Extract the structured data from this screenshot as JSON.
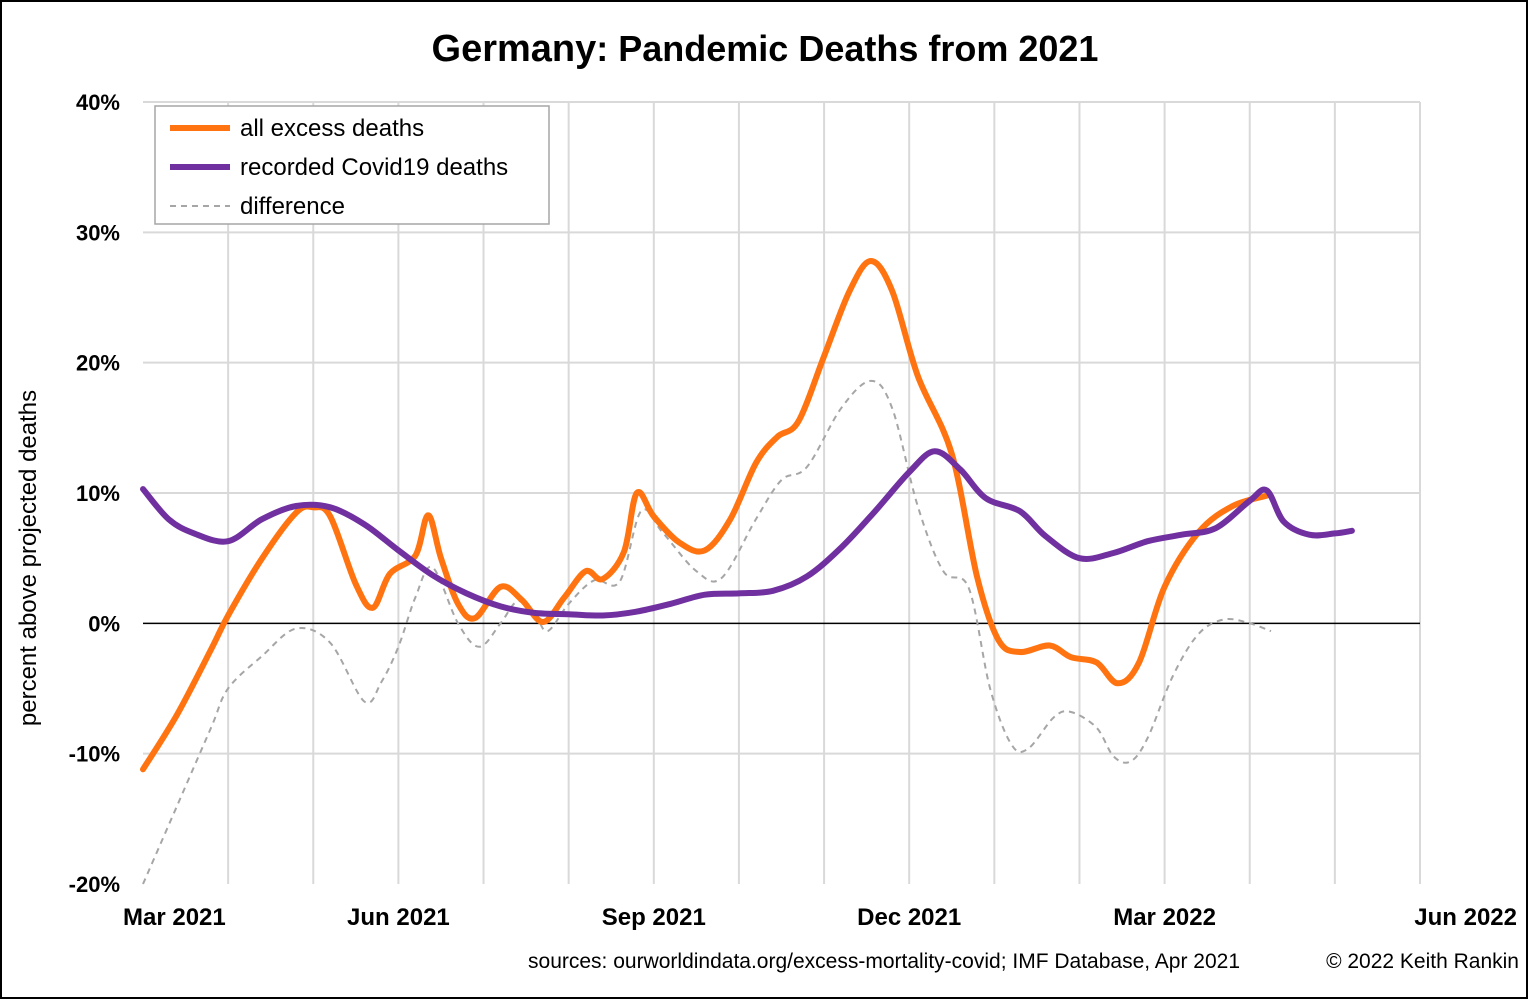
{
  "title_country": "Germany",
  "title_rest": ": Pandemic Deaths from 2021",
  "sources": "sources: ourworldindata.org/excess-mortality-covid; IMF Database, Apr 2021",
  "copyright": "© 2022 Keith Rankin",
  "chart_data": {
    "type": "line",
    "title": "Germany: Pandemic Deaths from 2021",
    "xlabel": "",
    "ylabel": "percent above projected deaths",
    "x_unit": "months since Mar 2021",
    "xlim": [
      0,
      15
    ],
    "x_ticks": [
      0,
      1,
      2,
      3,
      4,
      5,
      6,
      7,
      8,
      9,
      10,
      11,
      12,
      13,
      14,
      15
    ],
    "x_tick_labels": [
      {
        "x": 0,
        "label": "Mar 2021"
      },
      {
        "x": 3,
        "label": "Jun 2021"
      },
      {
        "x": 6,
        "label": "Sep 2021"
      },
      {
        "x": 9,
        "label": "Dec 2021"
      },
      {
        "x": 12,
        "label": "Mar 2022"
      },
      {
        "x": 15,
        "label": "Jun 2022"
      }
    ],
    "ylim": [
      -20,
      40
    ],
    "y_ticks": [
      -20,
      -10,
      0,
      10,
      20,
      30,
      40
    ],
    "y_tick_labels": [
      "-20%",
      "-10%",
      "0%",
      "10%",
      "20%",
      "30%",
      "40%"
    ],
    "grid": true,
    "legend_position": "top-left",
    "series": [
      {
        "name": "all excess deaths",
        "color": "#ff7410",
        "style": "solid",
        "points": [
          [
            0,
            -11.2
          ],
          [
            0.4,
            -7
          ],
          [
            0.8,
            -2
          ],
          [
            1,
            0.6
          ],
          [
            1.4,
            5
          ],
          [
            1.8,
            8.5
          ],
          [
            2,
            8.9
          ],
          [
            2.2,
            8.2
          ],
          [
            2.5,
            3
          ],
          [
            2.7,
            1.2
          ],
          [
            2.9,
            3.8
          ],
          [
            3.2,
            5.2
          ],
          [
            3.35,
            8.3
          ],
          [
            3.5,
            5
          ],
          [
            3.7,
            1.5
          ],
          [
            3.9,
            0.4
          ],
          [
            4.2,
            2.8
          ],
          [
            4.45,
            1.8
          ],
          [
            4.7,
            0.1
          ],
          [
            4.95,
            2
          ],
          [
            5.2,
            4
          ],
          [
            5.4,
            3.4
          ],
          [
            5.65,
            5.5
          ],
          [
            5.8,
            10
          ],
          [
            6,
            8.2
          ],
          [
            6.3,
            6.2
          ],
          [
            6.6,
            5.6
          ],
          [
            6.9,
            8
          ],
          [
            7.2,
            12.3
          ],
          [
            7.45,
            14.3
          ],
          [
            7.7,
            15.5
          ],
          [
            8,
            20.5
          ],
          [
            8.3,
            25.5
          ],
          [
            8.55,
            27.8
          ],
          [
            8.8,
            25.5
          ],
          [
            9.1,
            19
          ],
          [
            9.5,
            13
          ],
          [
            9.8,
            3.5
          ],
          [
            10.05,
            -1.3
          ],
          [
            10.3,
            -2.2
          ],
          [
            10.65,
            -1.7
          ],
          [
            10.9,
            -2.6
          ],
          [
            11.2,
            -3
          ],
          [
            11.45,
            -4.6
          ],
          [
            11.7,
            -3
          ],
          [
            12,
            2.8
          ],
          [
            12.4,
            7
          ],
          [
            12.8,
            9
          ],
          [
            13.2,
            9.8
          ]
        ]
      },
      {
        "name": "recorded Covid19 deaths",
        "color": "#7030a0",
        "style": "solid",
        "points": [
          [
            0,
            10.3
          ],
          [
            0.3,
            8
          ],
          [
            0.6,
            6.9
          ],
          [
            1,
            6.3
          ],
          [
            1.4,
            8
          ],
          [
            1.8,
            9
          ],
          [
            2.2,
            8.9
          ],
          [
            2.6,
            7.6
          ],
          [
            3,
            5.6
          ],
          [
            3.4,
            3.7
          ],
          [
            3.8,
            2.3
          ],
          [
            4.2,
            1.3
          ],
          [
            4.6,
            0.8
          ],
          [
            5,
            0.7
          ],
          [
            5.4,
            0.6
          ],
          [
            5.8,
            0.9
          ],
          [
            6.2,
            1.5
          ],
          [
            6.6,
            2.2
          ],
          [
            7,
            2.3
          ],
          [
            7.4,
            2.5
          ],
          [
            7.8,
            3.6
          ],
          [
            8.2,
            5.8
          ],
          [
            8.6,
            8.6
          ],
          [
            9,
            11.6
          ],
          [
            9.3,
            13.2
          ],
          [
            9.6,
            11.8
          ],
          [
            9.9,
            9.6
          ],
          [
            10.3,
            8.6
          ],
          [
            10.6,
            6.7
          ],
          [
            11,
            5
          ],
          [
            11.4,
            5.4
          ],
          [
            11.8,
            6.3
          ],
          [
            12.2,
            6.8
          ],
          [
            12.6,
            7.3
          ],
          [
            13,
            9.4
          ],
          [
            13.2,
            10.2
          ],
          [
            13.4,
            7.8
          ],
          [
            13.7,
            6.8
          ],
          [
            14,
            6.9
          ],
          [
            14.2,
            7.1
          ]
        ]
      },
      {
        "name": "difference",
        "color": "#a6a6a6",
        "style": "dashed",
        "points": [
          [
            0,
            -20
          ],
          [
            0.4,
            -14
          ],
          [
            0.8,
            -8
          ],
          [
            1,
            -5
          ],
          [
            1.4,
            -2.5
          ],
          [
            1.8,
            -0.4
          ],
          [
            2.2,
            -1.5
          ],
          [
            2.6,
            -6
          ],
          [
            2.8,
            -4.5
          ],
          [
            3,
            -1.8
          ],
          [
            3.2,
            2
          ],
          [
            3.4,
            4.3
          ],
          [
            3.7,
            0
          ],
          [
            3.95,
            -1.8
          ],
          [
            4.2,
            0
          ],
          [
            4.4,
            1.7
          ],
          [
            4.6,
            0.8
          ],
          [
            4.75,
            -0.6
          ],
          [
            5,
            1.5
          ],
          [
            5.3,
            3.3
          ],
          [
            5.6,
            3.2
          ],
          [
            5.85,
            8.6
          ],
          [
            6.1,
            7
          ],
          [
            6.5,
            4
          ],
          [
            6.8,
            3.5
          ],
          [
            7.2,
            8
          ],
          [
            7.5,
            11
          ],
          [
            7.8,
            12
          ],
          [
            8.2,
            16.5
          ],
          [
            8.55,
            18.6
          ],
          [
            8.8,
            16.5
          ],
          [
            9.1,
            9
          ],
          [
            9.4,
            4
          ],
          [
            9.7,
            2.7
          ],
          [
            9.95,
            -5
          ],
          [
            10.2,
            -9.3
          ],
          [
            10.4,
            -9.6
          ],
          [
            10.7,
            -7.2
          ],
          [
            10.9,
            -6.8
          ],
          [
            11.2,
            -8
          ],
          [
            11.4,
            -10.2
          ],
          [
            11.6,
            -10.6
          ],
          [
            11.8,
            -8.8
          ],
          [
            12.1,
            -4
          ],
          [
            12.4,
            -0.8
          ],
          [
            12.7,
            0.3
          ],
          [
            13,
            0
          ],
          [
            13.25,
            -0.6
          ]
        ]
      }
    ]
  }
}
